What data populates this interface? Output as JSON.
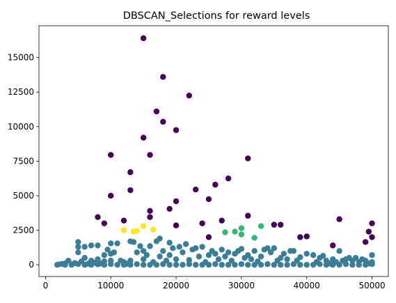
{
  "chart_data": {
    "type": "scatter",
    "title": "DBSCAN_Selections for reward levels",
    "xlabel": "",
    "ylabel": "",
    "xlim": [
      -1000,
      52500
    ],
    "ylim": [
      -850,
      17300
    ],
    "xticks": [
      0,
      10000,
      20000,
      30000,
      40000,
      50000
    ],
    "yticks": [
      0,
      2500,
      5000,
      7500,
      10000,
      12500,
      15000
    ],
    "grid": false,
    "legend": "none",
    "colors": {
      "noise": "#440154",
      "main": "#3b7c96",
      "cluster_a": "#35b779",
      "cluster_b": "#fde725"
    },
    "series": [
      {
        "color_key": "noise",
        "points": [
          [
            15000,
            16400
          ],
          [
            18000,
            13600
          ],
          [
            22000,
            12250
          ],
          [
            17000,
            11100
          ],
          [
            18000,
            10350
          ],
          [
            20000,
            9750
          ],
          [
            15000,
            9200
          ],
          [
            10000,
            7950
          ],
          [
            16000,
            7950
          ],
          [
            31000,
            7700
          ],
          [
            13000,
            6700
          ],
          [
            28000,
            6250
          ],
          [
            26000,
            5800
          ],
          [
            23000,
            5450
          ],
          [
            13000,
            5400
          ],
          [
            10000,
            5000
          ],
          [
            25000,
            4750
          ],
          [
            20000,
            4600
          ],
          [
            19000,
            4050
          ],
          [
            16000,
            3900
          ],
          [
            16000,
            3450
          ],
          [
            8000,
            3450
          ],
          [
            12000,
            3200
          ],
          [
            9000,
            3000
          ],
          [
            24000,
            3000
          ],
          [
            27000,
            3200
          ],
          [
            31000,
            3550
          ],
          [
            35000,
            2900
          ],
          [
            36000,
            2900
          ],
          [
            20000,
            2850
          ],
          [
            45000,
            3300
          ],
          [
            50000,
            3000
          ],
          [
            39000,
            2000
          ],
          [
            40000,
            2050
          ],
          [
            25000,
            2000
          ],
          [
            50000,
            2000
          ],
          [
            49500,
            2400
          ],
          [
            49000,
            1650
          ],
          [
            44000,
            1400
          ]
        ]
      },
      {
        "color_key": "cluster_a",
        "points": [
          [
            27500,
            2350
          ],
          [
            29000,
            2400
          ],
          [
            30000,
            2650
          ],
          [
            30000,
            2200
          ],
          [
            33000,
            2800
          ],
          [
            32000,
            1950
          ]
        ]
      },
      {
        "color_key": "cluster_b",
        "points": [
          [
            12000,
            2500
          ],
          [
            13500,
            2400
          ],
          [
            14000,
            2450
          ],
          [
            15000,
            2800
          ],
          [
            16500,
            2550
          ]
        ]
      },
      {
        "color_key": "main",
        "points": [
          [
            2000,
            30
          ],
          [
            2500,
            60
          ],
          [
            3000,
            100
          ],
          [
            3500,
            300
          ],
          [
            4000,
            40
          ],
          [
            4500,
            120
          ],
          [
            5000,
            1650
          ],
          [
            5000,
            1300
          ],
          [
            5000,
            900
          ],
          [
            5500,
            250
          ],
          [
            6000,
            1300
          ],
          [
            6000,
            500
          ],
          [
            6500,
            80
          ],
          [
            7000,
            1400
          ],
          [
            7000,
            300
          ],
          [
            7500,
            150
          ],
          [
            8000,
            1400
          ],
          [
            8000,
            400
          ],
          [
            8500,
            100
          ],
          [
            9000,
            700
          ],
          [
            9000,
            250
          ],
          [
            9500,
            1100
          ],
          [
            10000,
            1550
          ],
          [
            10000,
            800
          ],
          [
            10000,
            300
          ],
          [
            10500,
            900
          ],
          [
            11000,
            1550
          ],
          [
            11500,
            300
          ],
          [
            12000,
            200
          ],
          [
            12500,
            60
          ],
          [
            13000,
            1700
          ],
          [
            13000,
            300
          ],
          [
            13500,
            1650
          ],
          [
            14000,
            900
          ],
          [
            14500,
            1350
          ],
          [
            15000,
            1000
          ],
          [
            15000,
            400
          ],
          [
            15500,
            700
          ],
          [
            16000,
            1350
          ],
          [
            16500,
            200
          ],
          [
            17000,
            1700
          ],
          [
            17500,
            1900
          ],
          [
            17500,
            600
          ],
          [
            18000,
            1000
          ],
          [
            18500,
            300
          ],
          [
            19000,
            1600
          ],
          [
            19000,
            700
          ],
          [
            19500,
            1200
          ],
          [
            20000,
            400
          ],
          [
            20500,
            1300
          ],
          [
            21000,
            900
          ],
          [
            21500,
            1500
          ],
          [
            22000,
            350
          ],
          [
            22500,
            1100
          ],
          [
            23000,
            1200
          ],
          [
            23500,
            600
          ],
          [
            24000,
            1300
          ],
          [
            24500,
            200
          ],
          [
            25000,
            700
          ],
          [
            25500,
            1000
          ],
          [
            26000,
            800
          ],
          [
            26500,
            400
          ],
          [
            27000,
            1100
          ],
          [
            27500,
            600
          ],
          [
            28000,
            900
          ],
          [
            28500,
            300
          ],
          [
            29000,
            800
          ],
          [
            29500,
            1000
          ],
          [
            30000,
            1150
          ],
          [
            30500,
            500
          ],
          [
            31000,
            700
          ],
          [
            31500,
            400
          ],
          [
            32000,
            1000
          ],
          [
            32500,
            250
          ],
          [
            33000,
            600
          ],
          [
            33500,
            1100
          ],
          [
            34000,
            1200
          ],
          [
            34500,
            900
          ],
          [
            35000,
            1200
          ],
          [
            35500,
            300
          ],
          [
            36000,
            500
          ],
          [
            36500,
            800
          ],
          [
            37000,
            400
          ],
          [
            37500,
            1000
          ],
          [
            38000,
            1000
          ],
          [
            38500,
            300
          ],
          [
            39000,
            550
          ],
          [
            40000,
            800
          ],
          [
            41000,
            700
          ],
          [
            41500,
            200
          ],
          [
            42000,
            500
          ],
          [
            42500,
            650
          ],
          [
            43000,
            300
          ],
          [
            43500,
            100
          ],
          [
            44000,
            400
          ],
          [
            44500,
            200
          ],
          [
            45000,
            1000
          ],
          [
            45500,
            300
          ],
          [
            46000,
            400
          ],
          [
            46500,
            500
          ],
          [
            47000,
            300
          ],
          [
            47500,
            500
          ],
          [
            48000,
            200
          ],
          [
            48500,
            400
          ],
          [
            49000,
            300
          ],
          [
            49500,
            100
          ],
          [
            50000,
            700
          ],
          [
            50000,
            200
          ],
          [
            1800,
            0
          ],
          [
            3000,
            0
          ],
          [
            4000,
            0
          ],
          [
            5000,
            50
          ],
          [
            6000,
            0
          ],
          [
            7000,
            0
          ],
          [
            8000,
            30
          ],
          [
            9000,
            0
          ],
          [
            10000,
            50
          ],
          [
            11000,
            0
          ],
          [
            12000,
            0
          ],
          [
            13000,
            0
          ],
          [
            14000,
            50
          ],
          [
            15000,
            0
          ],
          [
            16000,
            0
          ],
          [
            17000,
            0
          ],
          [
            18000,
            50
          ],
          [
            19000,
            0
          ],
          [
            20000,
            0
          ],
          [
            21000,
            0
          ],
          [
            22000,
            50
          ],
          [
            23000,
            0
          ],
          [
            24000,
            0
          ],
          [
            25000,
            0
          ],
          [
            26000,
            50
          ],
          [
            27000,
            0
          ],
          [
            28000,
            0
          ],
          [
            29000,
            0
          ],
          [
            30000,
            50
          ],
          [
            31000,
            0
          ],
          [
            32000,
            0
          ],
          [
            33000,
            0
          ],
          [
            34000,
            50
          ],
          [
            35000,
            0
          ],
          [
            36000,
            0
          ],
          [
            37000,
            0
          ],
          [
            38000,
            50
          ],
          [
            39000,
            0
          ],
          [
            40000,
            0
          ],
          [
            41000,
            0
          ],
          [
            42000,
            50
          ],
          [
            43000,
            0
          ],
          [
            44000,
            0
          ],
          [
            45000,
            0
          ],
          [
            46000,
            50
          ],
          [
            47000,
            0
          ],
          [
            48000,
            0
          ],
          [
            49000,
            0
          ],
          [
            50000,
            50
          ]
        ]
      }
    ]
  }
}
